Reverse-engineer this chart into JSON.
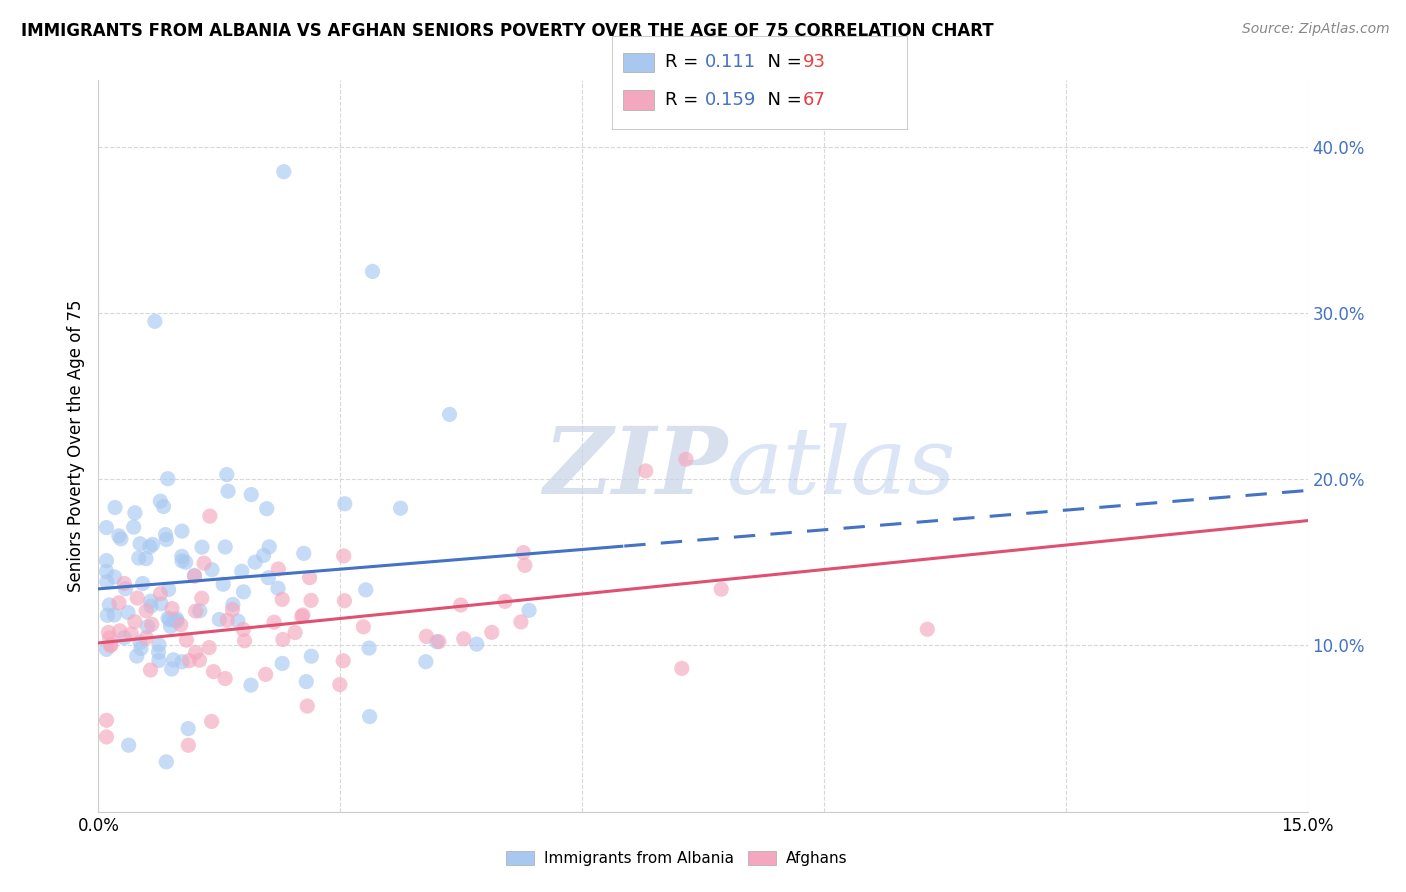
{
  "title": "IMMIGRANTS FROM ALBANIA VS AFGHAN SENIORS POVERTY OVER THE AGE OF 75 CORRELATION CHART",
  "source": "Source: ZipAtlas.com",
  "ylabel": "Seniors Poverty Over the Age of 75",
  "xlim": [
    0.0,
    0.15
  ],
  "ylim": [
    0.0,
    0.44
  ],
  "albania_color": "#a8c8f0",
  "afghan_color": "#f4a8bf",
  "albania_R": 0.111,
  "albania_N": 93,
  "afghan_R": 0.159,
  "afghan_N": 67,
  "background_color": "#ffffff",
  "grid_color": "#d8d8d8",
  "albania_line_color": "#4472c4",
  "afghan_line_color": "#e05070",
  "scatter_alpha": 0.65,
  "scatter_size": 120,
  "watermark_color": "#d0ddf0",
  "right_tick_color": "#4472c4",
  "title_fontsize": 12,
  "source_fontsize": 10,
  "tick_fontsize": 12,
  "ylabel_fontsize": 12
}
